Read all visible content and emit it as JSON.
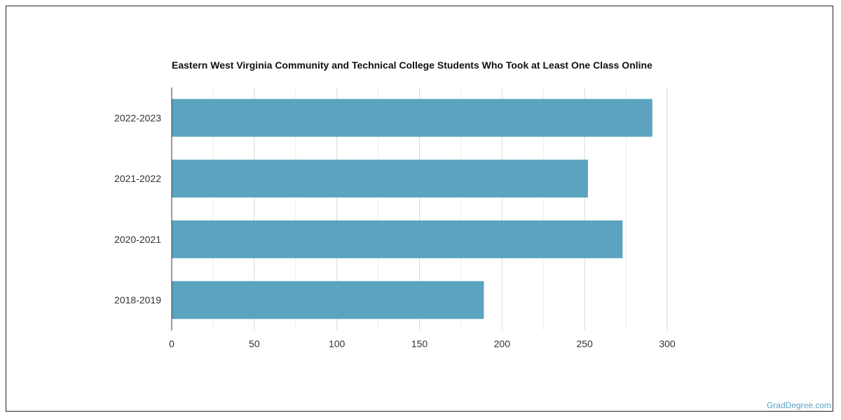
{
  "chart_data": {
    "type": "bar",
    "orientation": "horizontal",
    "title": "Eastern West Virginia Community and Technical College Students Who Took at Least One Class Online",
    "categories": [
      "2022-2023",
      "2021-2022",
      "2020-2021",
      "2018-2019"
    ],
    "values": [
      291,
      252,
      273,
      189
    ],
    "xlim": [
      0,
      300
    ],
    "x_ticks": [
      0,
      50,
      100,
      150,
      200,
      250,
      300
    ],
    "grid": true,
    "bar_color": "#5ba3bf"
  },
  "watermark": "GradDegree.com"
}
